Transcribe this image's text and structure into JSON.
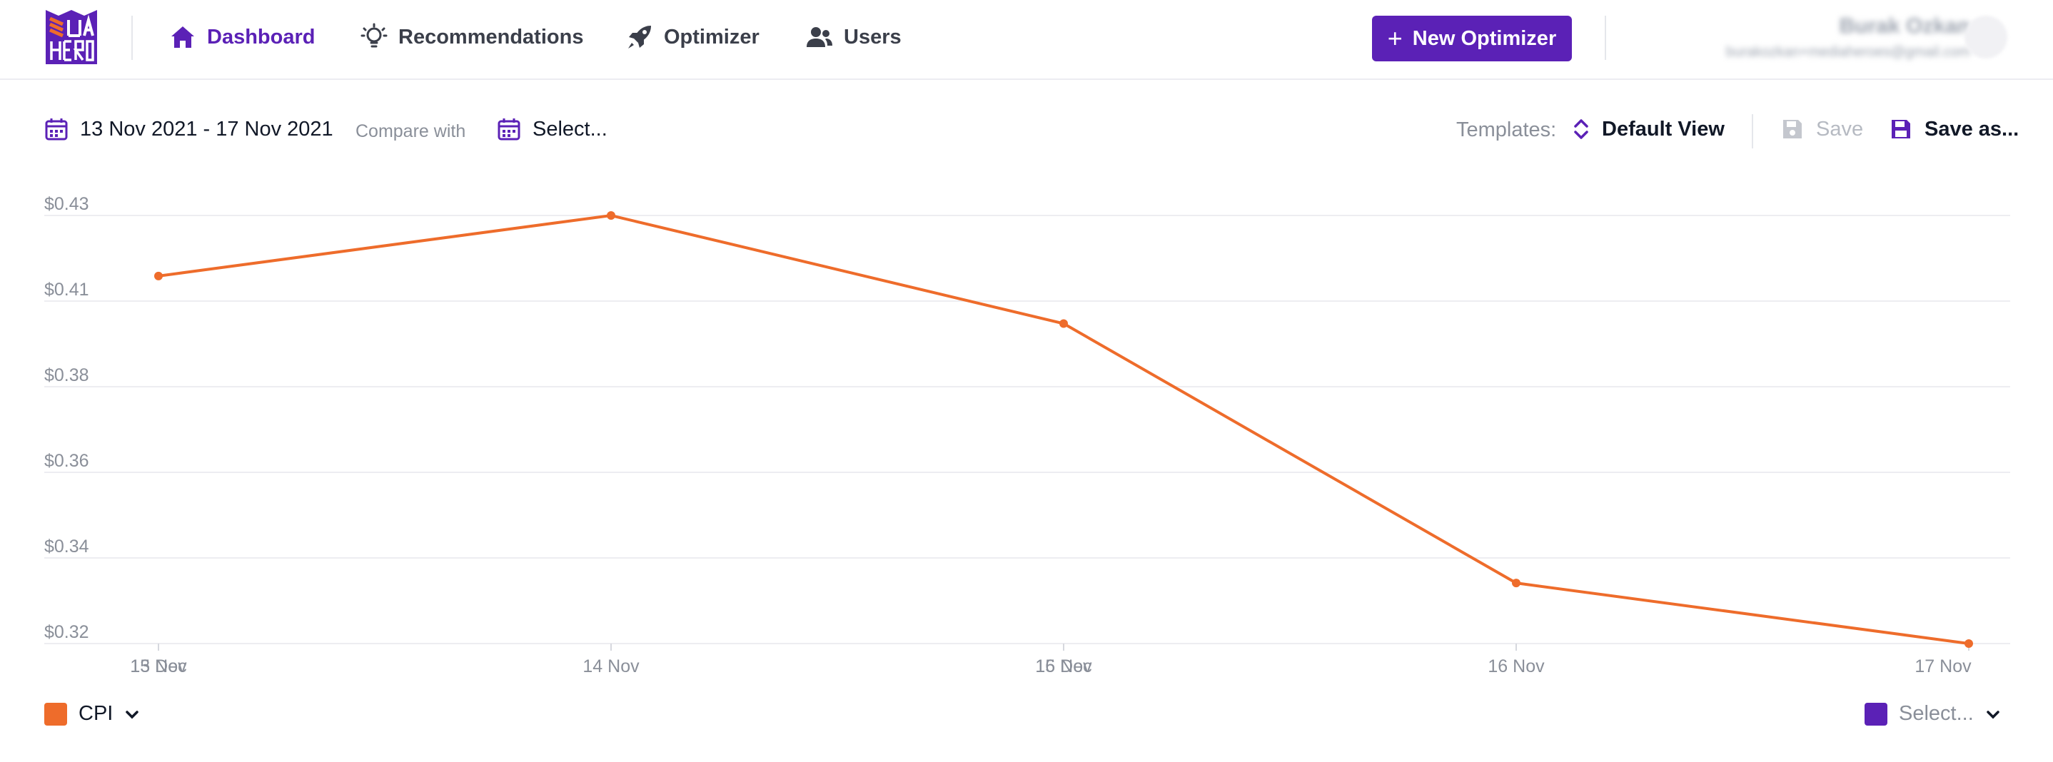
{
  "nav": {
    "items": [
      {
        "label": "Dashboard",
        "icon": "home-icon",
        "active": true
      },
      {
        "label": "Recommendations",
        "icon": "lightbulb-icon",
        "active": false
      },
      {
        "label": "Optimizer",
        "icon": "rocket-icon",
        "active": false
      },
      {
        "label": "Users",
        "icon": "users-icon",
        "active": false
      }
    ],
    "new_button_label": "New Optimizer",
    "user_name": "Burak Ozkan",
    "user_email": "burakozkan+mediaheroes@gmail.com"
  },
  "toolbar": {
    "date_range": "13 Nov 2021 - 17 Nov 2021",
    "compare_label": "Compare with",
    "compare_value": "Select...",
    "templates_label": "Templates:",
    "template_value": "Default View",
    "save_label": "Save",
    "save_as_label": "Save as..."
  },
  "colors": {
    "accent": "#5b21b6",
    "series": "#ee6c2b",
    "secondary_swatch": "#5b21b6"
  },
  "chart_data": {
    "type": "line",
    "x": [
      "13 Nov",
      "14 Nov",
      "15 Nov",
      "16 Nov",
      "17 Nov"
    ],
    "x_tick_labels": [
      "15 Nov",
      "13 Dec",
      "14 Nov",
      "16 Nov",
      "15 Dec",
      "16 Nov",
      "17 Nov"
    ],
    "series": [
      {
        "name": "CPI",
        "values": [
          0.416,
          0.43,
          0.405,
          0.345,
          0.331
        ]
      }
    ],
    "y_tick_labels": [
      "$0.43",
      "$0.41",
      "$0.38",
      "$0.36",
      "$0.34",
      "$0.32"
    ],
    "ylim": [
      0.331,
      0.43
    ],
    "grid": true,
    "legend": "bottom-left"
  },
  "legend": {
    "primary_label": "CPI",
    "secondary_label": "Select..."
  }
}
